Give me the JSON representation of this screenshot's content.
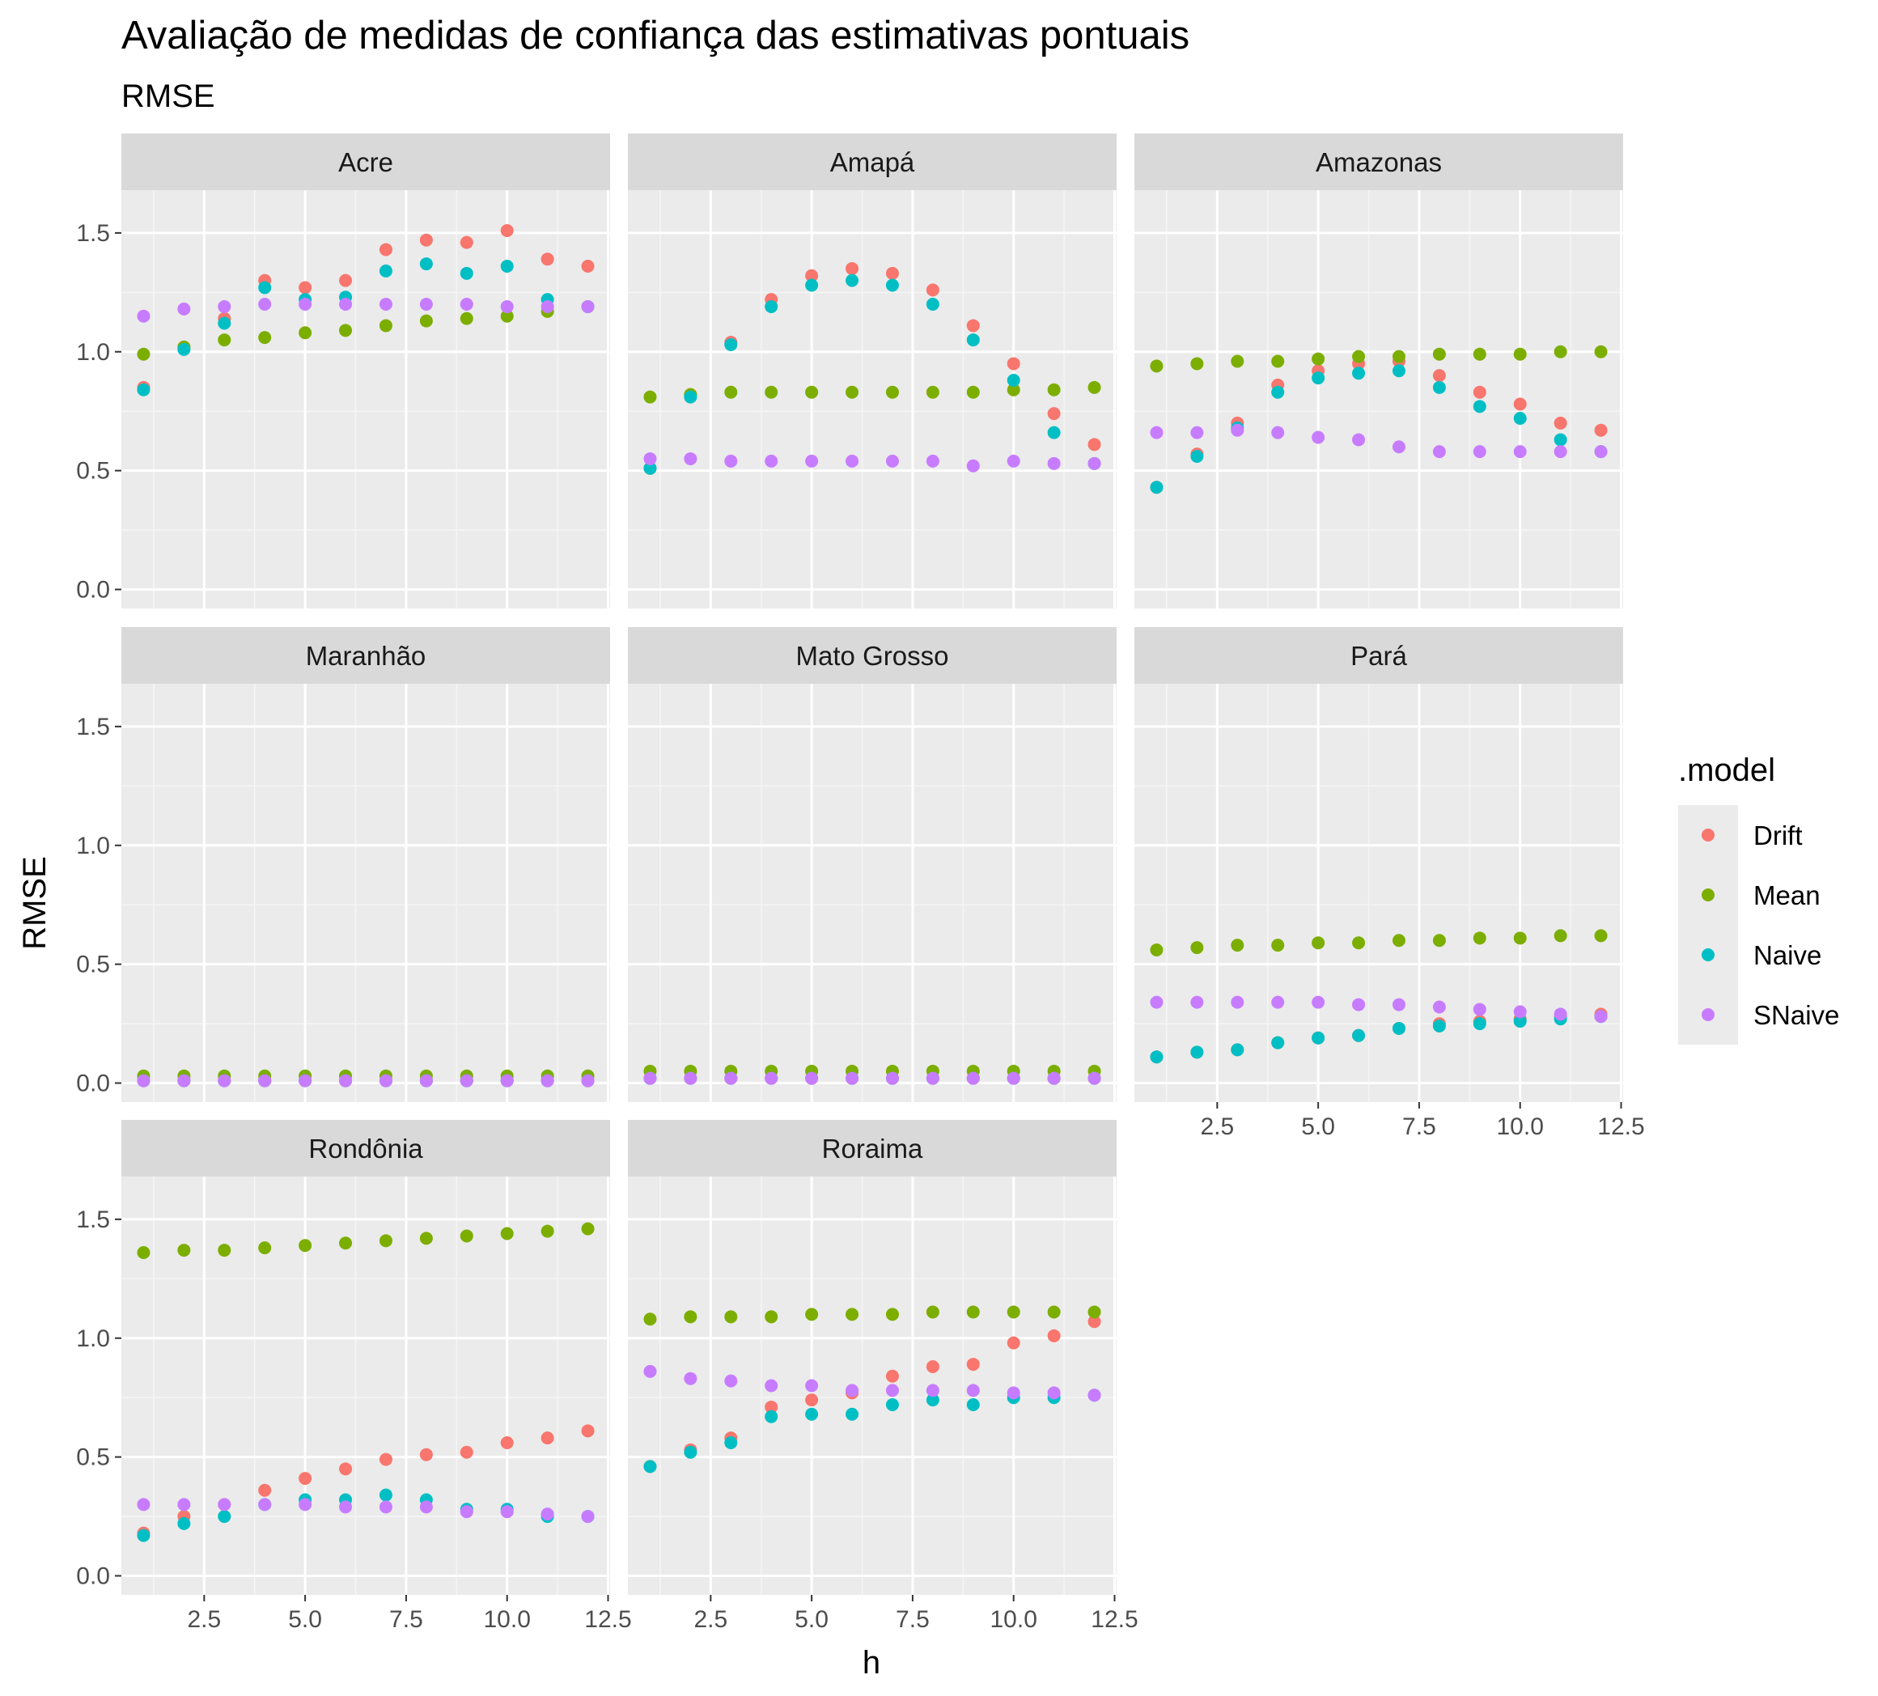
{
  "chart_data": {
    "type": "scatter",
    "title": "Avaliação de medidas de confiança das estimativas pontuais",
    "subtitle": "RMSE",
    "xlabel": "h",
    "ylabel": "RMSE",
    "xlim": [
      0.45,
      12.55
    ],
    "ylim": [
      -0.08,
      1.68
    ],
    "x_ticks": [
      2.5,
      5.0,
      7.5,
      10.0,
      12.5
    ],
    "x_tick_labels": [
      "2.5",
      "5.0",
      "7.5",
      "10.0",
      "12.5"
    ],
    "y_ticks": [
      0.0,
      0.5,
      1.0,
      1.5
    ],
    "y_tick_labels": [
      "0.0",
      "0.5",
      "1.0",
      "1.5"
    ],
    "grid": true,
    "legend": {
      "title": ".model",
      "position": "right",
      "entries": [
        "Drift",
        "Mean",
        "Naive",
        "SNaive"
      ]
    },
    "colors": {
      "Drift": "#F8766D",
      "Mean": "#7CAE00",
      "Naive": "#00BFC4",
      "SNaive": "#C77CFF",
      "panel_bg": "#EBEBEB",
      "strip_bg": "#D9D9D9",
      "grid_major": "#FFFFFF",
      "grid_minor": "#F5F5F5"
    },
    "x": [
      1,
      2,
      3,
      4,
      5,
      6,
      7,
      8,
      9,
      10,
      11,
      12
    ],
    "facets": [
      {
        "name": "Acre",
        "series": [
          {
            "name": "Drift",
            "values": [
              0.85,
              1.02,
              1.14,
              1.3,
              1.27,
              1.3,
              1.43,
              1.47,
              1.46,
              1.51,
              1.39,
              1.36
            ]
          },
          {
            "name": "Mean",
            "values": [
              0.99,
              1.02,
              1.05,
              1.06,
              1.08,
              1.09,
              1.11,
              1.13,
              1.14,
              1.15,
              1.17,
              1.19
            ]
          },
          {
            "name": "Naive",
            "values": [
              0.84,
              1.01,
              1.12,
              1.27,
              1.22,
              1.23,
              1.34,
              1.37,
              1.33,
              1.36,
              1.22,
              1.19
            ]
          },
          {
            "name": "SNaive",
            "values": [
              1.15,
              1.18,
              1.19,
              1.2,
              1.2,
              1.2,
              1.2,
              1.2,
              1.2,
              1.19,
              1.19,
              1.19
            ]
          }
        ]
      },
      {
        "name": "Amapá",
        "series": [
          {
            "name": "Drift",
            "values": [
              0.51,
              0.82,
              1.04,
              1.22,
              1.32,
              1.35,
              1.33,
              1.26,
              1.11,
              0.95,
              0.74,
              0.61
            ]
          },
          {
            "name": "Mean",
            "values": [
              0.81,
              0.82,
              0.83,
              0.83,
              0.83,
              0.83,
              0.83,
              0.83,
              0.83,
              0.84,
              0.84,
              0.85
            ]
          },
          {
            "name": "Naive",
            "values": [
              0.51,
              0.81,
              1.03,
              1.19,
              1.28,
              1.3,
              1.28,
              1.2,
              1.05,
              0.88,
              0.66,
              0.53
            ]
          },
          {
            "name": "SNaive",
            "values": [
              0.55,
              0.55,
              0.54,
              0.54,
              0.54,
              0.54,
              0.54,
              0.54,
              0.52,
              0.54,
              0.53,
              0.53
            ]
          }
        ]
      },
      {
        "name": "Amazonas",
        "series": [
          {
            "name": "Drift",
            "values": [
              0.43,
              0.57,
              0.7,
              0.86,
              0.92,
              0.95,
              0.96,
              0.9,
              0.83,
              0.78,
              0.7,
              0.67
            ]
          },
          {
            "name": "Mean",
            "values": [
              0.94,
              0.95,
              0.96,
              0.96,
              0.97,
              0.98,
              0.98,
              0.99,
              0.99,
              0.99,
              1.0,
              1.0
            ]
          },
          {
            "name": "Naive",
            "values": [
              0.43,
              0.56,
              0.68,
              0.83,
              0.89,
              0.91,
              0.92,
              0.85,
              0.77,
              0.72,
              0.63,
              0.58
            ]
          },
          {
            "name": "SNaive",
            "values": [
              0.66,
              0.66,
              0.67,
              0.66,
              0.64,
              0.63,
              0.6,
              0.58,
              0.58,
              0.58,
              0.58,
              0.58
            ]
          }
        ]
      },
      {
        "name": "Maranhão",
        "series": [
          {
            "name": "Drift",
            "values": [
              0.01,
              0.01,
              0.01,
              0.01,
              0.01,
              0.01,
              0.01,
              0.01,
              0.01,
              0.01,
              0.01,
              0.01
            ]
          },
          {
            "name": "Mean",
            "values": [
              0.03,
              0.03,
              0.03,
              0.03,
              0.03,
              0.03,
              0.03,
              0.03,
              0.03,
              0.03,
              0.03,
              0.03
            ]
          },
          {
            "name": "Naive",
            "values": [
              0.01,
              0.01,
              0.01,
              0.01,
              0.01,
              0.01,
              0.01,
              0.01,
              0.01,
              0.01,
              0.01,
              0.01
            ]
          },
          {
            "name": "SNaive",
            "values": [
              0.01,
              0.01,
              0.01,
              0.01,
              0.01,
              0.01,
              0.01,
              0.01,
              0.01,
              0.01,
              0.01,
              0.01
            ]
          }
        ]
      },
      {
        "name": "Mato Grosso",
        "series": [
          {
            "name": "Drift",
            "values": [
              0.02,
              0.02,
              0.02,
              0.02,
              0.02,
              0.02,
              0.02,
              0.02,
              0.02,
              0.02,
              0.02,
              0.02
            ]
          },
          {
            "name": "Mean",
            "values": [
              0.05,
              0.05,
              0.05,
              0.05,
              0.05,
              0.05,
              0.05,
              0.05,
              0.05,
              0.05,
              0.05,
              0.05
            ]
          },
          {
            "name": "Naive",
            "values": [
              0.02,
              0.02,
              0.02,
              0.02,
              0.02,
              0.02,
              0.02,
              0.02,
              0.02,
              0.02,
              0.02,
              0.02
            ]
          },
          {
            "name": "SNaive",
            "values": [
              0.02,
              0.02,
              0.02,
              0.02,
              0.02,
              0.02,
              0.02,
              0.02,
              0.02,
              0.02,
              0.02,
              0.02
            ]
          }
        ]
      },
      {
        "name": "Pará",
        "series": [
          {
            "name": "Drift",
            "values": [
              0.11,
              0.13,
              0.14,
              0.17,
              0.19,
              0.2,
              0.23,
              0.25,
              0.26,
              0.27,
              0.28,
              0.29
            ]
          },
          {
            "name": "Mean",
            "values": [
              0.56,
              0.57,
              0.58,
              0.58,
              0.59,
              0.59,
              0.6,
              0.6,
              0.61,
              0.61,
              0.62,
              0.62
            ]
          },
          {
            "name": "Naive",
            "values": [
              0.11,
              0.13,
              0.14,
              0.17,
              0.19,
              0.2,
              0.23,
              0.24,
              0.25,
              0.26,
              0.27,
              0.28
            ]
          },
          {
            "name": "SNaive",
            "values": [
              0.34,
              0.34,
              0.34,
              0.34,
              0.34,
              0.33,
              0.33,
              0.32,
              0.31,
              0.3,
              0.29,
              0.28
            ]
          }
        ]
      },
      {
        "name": "Rondônia",
        "series": [
          {
            "name": "Drift",
            "values": [
              0.18,
              0.25,
              0.3,
              0.36,
              0.41,
              0.45,
              0.49,
              0.51,
              0.52,
              0.56,
              0.58,
              0.61
            ]
          },
          {
            "name": "Mean",
            "values": [
              1.36,
              1.37,
              1.37,
              1.38,
              1.39,
              1.4,
              1.41,
              1.42,
              1.43,
              1.44,
              1.45,
              1.46
            ]
          },
          {
            "name": "Naive",
            "values": [
              0.17,
              0.22,
              0.25,
              0.3,
              0.32,
              0.32,
              0.34,
              0.32,
              0.28,
              0.28,
              0.25,
              0.25
            ]
          },
          {
            "name": "SNaive",
            "values": [
              0.3,
              0.3,
              0.3,
              0.3,
              0.3,
              0.29,
              0.29,
              0.29,
              0.27,
              0.27,
              0.26,
              0.25
            ]
          }
        ]
      },
      {
        "name": "Roraima",
        "series": [
          {
            "name": "Drift",
            "values": [
              0.46,
              0.53,
              0.58,
              0.71,
              0.74,
              0.77,
              0.84,
              0.88,
              0.89,
              0.98,
              1.01,
              1.07
            ]
          },
          {
            "name": "Mean",
            "values": [
              1.08,
              1.09,
              1.09,
              1.09,
              1.1,
              1.1,
              1.1,
              1.11,
              1.11,
              1.11,
              1.11,
              1.11
            ]
          },
          {
            "name": "Naive",
            "values": [
              0.46,
              0.52,
              0.56,
              0.67,
              0.68,
              0.68,
              0.72,
              0.74,
              0.72,
              0.75,
              0.75,
              0.76
            ]
          },
          {
            "name": "SNaive",
            "values": [
              0.86,
              0.83,
              0.82,
              0.8,
              0.8,
              0.78,
              0.78,
              0.78,
              0.78,
              0.77,
              0.77,
              0.76
            ]
          }
        ]
      }
    ]
  }
}
